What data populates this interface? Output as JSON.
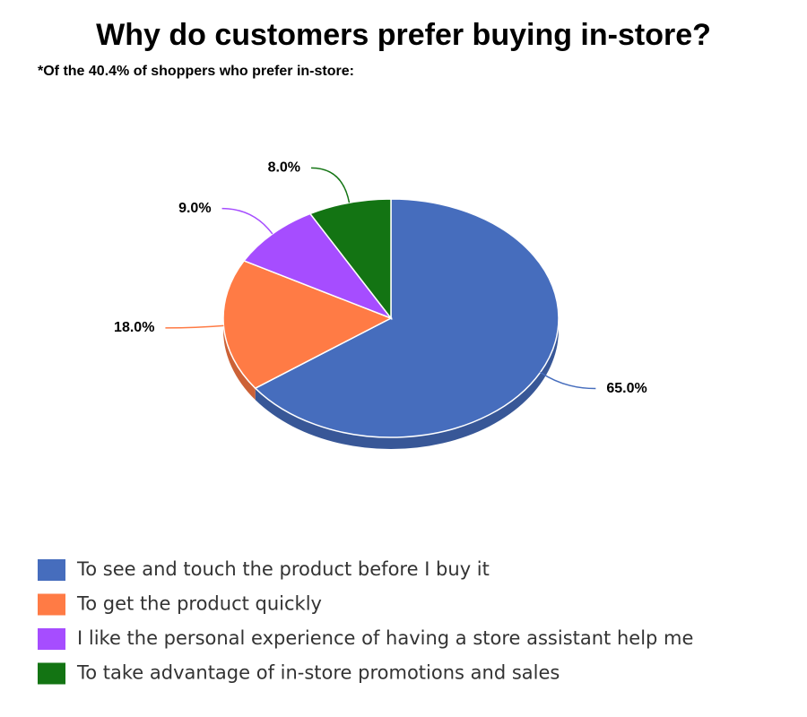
{
  "chart_data": {
    "type": "pie",
    "title": "Why do customers prefer buying in-store?",
    "subtitle": "*Of the 40.4% of shoppers who prefer in-store:",
    "categories": [
      "To see and touch the product before I buy it",
      "To get the product quickly",
      "I like the personal experience of having a store assistant help me",
      "To take advantage of in-store promotions and sales"
    ],
    "values": [
      65,
      18,
      9,
      8
    ],
    "value_labels": [
      "65.0%",
      "18.0%",
      "9.0%",
      "8.0%"
    ],
    "colors": [
      "#466dbd",
      "#ff7b45",
      "#a64dff",
      "#137413"
    ]
  }
}
